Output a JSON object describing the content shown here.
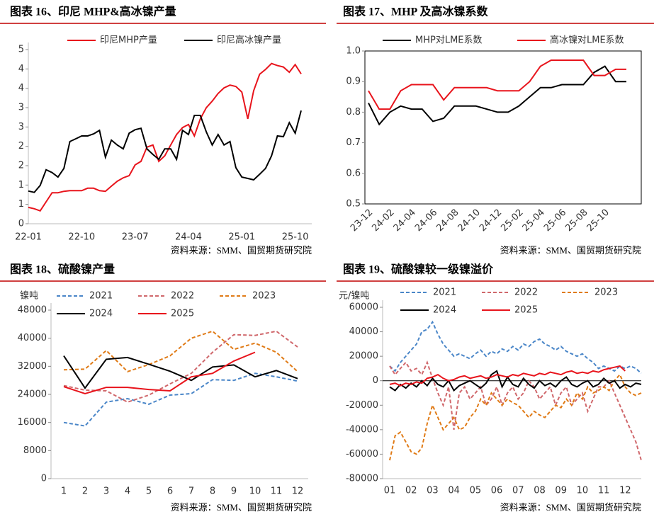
{
  "chart_data": [
    {
      "type": "line",
      "title": "图表 16、印尼 MHP&高冰镍产量",
      "source": "资料来源：SMM、国贸期货研究院",
      "categories": [
        "22-01",
        null,
        null,
        null,
        null,
        null,
        null,
        null,
        null,
        "22-10",
        null,
        null,
        null,
        null,
        null,
        null,
        null,
        null,
        "23-07",
        null,
        null,
        null,
        null,
        null,
        null,
        null,
        null,
        "24-04",
        null,
        null,
        null,
        null,
        null,
        null,
        null,
        null,
        "25-01",
        null,
        null,
        null,
        null,
        null,
        null,
        null,
        null,
        "25-10",
        null
      ],
      "ylim": [
        0,
        5
      ],
      "yticks": [
        0,
        {
          "value": 0.556,
          "label": "1"
        },
        {
          "value": 1.111,
          "label": "1"
        },
        {
          "value": 1.667,
          "label": "2"
        },
        {
          "value": 2.222,
          "label": "2"
        },
        {
          "value": 2.778,
          "label": "3"
        },
        {
          "value": 3.333,
          "label": "3"
        },
        {
          "value": 3.889,
          "label": "4"
        },
        {
          "value": 4.444,
          "label": "4"
        },
        5
      ],
      "series": [
        {
          "name": "印尼MHP产量",
          "color": "#e8141c",
          "values": [
            0.47,
            0.43,
            0.37,
            0.63,
            0.89,
            0.89,
            0.93,
            0.95,
            0.95,
            0.95,
            1.02,
            1.02,
            0.95,
            0.93,
            1.08,
            1.22,
            1.32,
            1.38,
            1.69,
            1.79,
            2.2,
            2.26,
            1.79,
            1.95,
            2.26,
            2.56,
            2.76,
            2.85,
            2.52,
            3.01,
            3.33,
            3.52,
            3.74,
            3.9,
            3.98,
            3.94,
            3.78,
            3.01,
            3.82,
            4.29,
            4.43,
            4.6,
            4.54,
            4.5,
            4.35,
            4.57,
            4.3
          ]
        },
        {
          "name": "印尼高冰镍产量",
          "color": "#000000",
          "values": [
            0.94,
            0.9,
            1.1,
            1.55,
            1.47,
            1.34,
            1.59,
            2.36,
            2.44,
            2.52,
            2.52,
            2.58,
            2.68,
            1.91,
            2.4,
            2.26,
            2.15,
            2.6,
            2.7,
            2.74,
            2.15,
            1.99,
            1.85,
            2.15,
            2.15,
            1.85,
            2.68,
            2.56,
            3.11,
            3.11,
            2.64,
            2.26,
            2.56,
            2.26,
            2.36,
            1.61,
            1.34,
            1.3,
            1.26,
            1.42,
            1.59,
            1.95,
            2.52,
            2.5,
            2.9,
            2.6,
            3.25
          ]
        }
      ]
    },
    {
      "type": "line",
      "title": "图表 17、MHP 及高冰镍系数",
      "source": "资料来源：SMM、国贸期货研究院",
      "categories": [
        "23-12",
        null,
        "24-02",
        null,
        "24-04",
        null,
        "24-06",
        null,
        "24-08",
        null,
        "24-10",
        null,
        "24-12",
        null,
        "25-02",
        null,
        "25-04",
        null,
        "25-06",
        null,
        "25-08",
        null,
        "25-10",
        null,
        null
      ],
      "ylim": [
        0.5,
        1
      ],
      "yticks": [
        0.5,
        0.6,
        0.7,
        0.8,
        0.9,
        {
          "value": 1,
          "label": "1.0"
        }
      ],
      "series": [
        {
          "name": "MHP对LME系数",
          "color": "#000000",
          "values": [
            0.83,
            0.76,
            0.8,
            0.82,
            0.81,
            0.81,
            0.77,
            0.78,
            0.82,
            0.82,
            0.82,
            0.81,
            0.8,
            0.8,
            0.82,
            0.85,
            0.88,
            0.88,
            0.89,
            0.89,
            0.89,
            0.93,
            0.95,
            0.9,
            0.9
          ]
        },
        {
          "name": "高冰镍对LME系数",
          "color": "#e8141c",
          "values": [
            0.87,
            0.81,
            0.81,
            0.87,
            0.89,
            0.89,
            0.89,
            0.84,
            0.88,
            0.88,
            0.88,
            0.88,
            0.87,
            0.87,
            0.87,
            0.9,
            0.95,
            0.97,
            0.97,
            0.97,
            0.97,
            0.92,
            0.92,
            0.94,
            0.94
          ]
        }
      ]
    },
    {
      "type": "line",
      "title": "图表 18、硫酸镍产量",
      "source": "资料来源：SMM、国贸期货研究院",
      "y_label": "镍吨",
      "categories": [
        "1",
        "2",
        "3",
        "4",
        "5",
        "6",
        "7",
        "8",
        "9",
        "10",
        "11",
        "12"
      ],
      "ylim": [
        0,
        48000
      ],
      "yticks": [
        0,
        8000,
        16000,
        24000,
        32000,
        40000,
        48000
      ],
      "series": [
        {
          "name": "2021",
          "color": "#4a86c8",
          "dashed": true,
          "values": [
            16000,
            15000,
            21800,
            22800,
            21200,
            23800,
            24200,
            28200,
            28000,
            30000,
            29000,
            27800
          ]
        },
        {
          "name": "2022",
          "color": "#d0686c",
          "dashed": true,
          "values": [
            26500,
            25200,
            25000,
            21800,
            23800,
            27000,
            30000,
            36000,
            41000,
            40800,
            42000,
            37500
          ]
        },
        {
          "name": "2023",
          "color": "#e07b17",
          "dashed": true,
          "values": [
            31000,
            31200,
            36500,
            30500,
            32500,
            35000,
            40000,
            42000,
            36800,
            38600,
            36000,
            30500
          ]
        },
        {
          "name": "2024",
          "color": "#000000",
          "values": [
            35000,
            25800,
            34000,
            34500,
            32600,
            30600,
            28000,
            31800,
            32400,
            29000,
            30800,
            28500
          ]
        },
        {
          "name": "2025",
          "color": "#e8141c",
          "values": [
            26200,
            24200,
            26000,
            26000,
            25400,
            25000,
            29000,
            30000,
            33500,
            36000,
            null,
            null
          ]
        }
      ]
    },
    {
      "type": "line",
      "title": "图表 19、硫酸镍较一级镍溢价",
      "source": "资料来源：SMM、国贸期货研究院",
      "y_label": "元/镍吨",
      "categories": [
        "01",
        null,
        null,
        null,
        "02",
        null,
        null,
        null,
        "03",
        null,
        null,
        null,
        "04",
        null,
        null,
        null,
        "05",
        null,
        null,
        null,
        "06",
        null,
        null,
        null,
        "07",
        null,
        null,
        null,
        "08",
        null,
        null,
        null,
        "09",
        null,
        null,
        null,
        "10",
        null,
        null,
        null,
        "11",
        null,
        null,
        null,
        "12",
        null,
        null,
        null
      ],
      "ylim": [
        -80000,
        60000
      ],
      "yticks": [
        -80000,
        -60000,
        -40000,
        -20000,
        0,
        20000,
        40000,
        60000
      ],
      "series": [
        {
          "name": "2021",
          "color": "#4a86c8",
          "dashed": true,
          "values": [
            12000,
            8000,
            15000,
            20000,
            25000,
            30000,
            40000,
            42000,
            48000,
            38000,
            30000,
            25000,
            20000,
            22000,
            20000,
            18000,
            22000,
            25000,
            20000,
            24000,
            22000,
            26000,
            24000,
            28000,
            25000,
            30000,
            28000,
            32000,
            34000,
            30000,
            28000,
            25000,
            28000,
            24000,
            22000,
            20000,
            22000,
            18000,
            15000,
            10000,
            12000,
            10000,
            8000,
            12000,
            10000,
            12000,
            10000,
            6000
          ]
        },
        {
          "name": "2022",
          "color": "#d0686c",
          "dashed": true,
          "values": [
            12000,
            5000,
            10000,
            15000,
            8000,
            10000,
            5000,
            15000,
            2000,
            -10000,
            -20000,
            -5000,
            -40000,
            -10000,
            -5000,
            -15000,
            -10000,
            -5000,
            -20000,
            -15000,
            -5000,
            -20000,
            -10000,
            -5000,
            -15000,
            -10000,
            0,
            -5000,
            -15000,
            -10000,
            -5000,
            -20000,
            -10000,
            -5000,
            -20000,
            -15000,
            -10000,
            -25000,
            -15000,
            -5000,
            -5000,
            0,
            -10000,
            -20000,
            -30000,
            -40000,
            -50000,
            -65000
          ]
        },
        {
          "name": "2023",
          "color": "#e07b17",
          "dashed": true,
          "values": [
            -65000,
            -45000,
            -42000,
            -50000,
            -58000,
            -60000,
            -55000,
            -35000,
            -20000,
            -30000,
            -40000,
            -35000,
            -30000,
            -40000,
            -38000,
            -30000,
            -25000,
            -15000,
            -20000,
            -10000,
            -15000,
            -20000,
            -15000,
            -18000,
            -20000,
            -25000,
            -30000,
            -25000,
            -28000,
            -30000,
            -25000,
            -20000,
            -22000,
            -15000,
            -20000,
            -10000,
            -15000,
            -5000,
            -10000,
            -8000,
            -5000,
            -8000,
            0,
            5000,
            -5000,
            -10000,
            -12000,
            -10000
          ]
        },
        {
          "name": "2024",
          "color": "#000000",
          "values": [
            -5000,
            -8000,
            -3000,
            -6000,
            -2000,
            -5000,
            0,
            -4000,
            2000,
            -3000,
            -5000,
            0,
            -8000,
            -4000,
            -2000,
            0,
            -3000,
            -6000,
            -2000,
            5000,
            8000,
            -5000,
            3000,
            -3000,
            -5000,
            2000,
            -3000,
            -6000,
            0,
            -4000,
            -2000,
            -5000,
            0,
            3000,
            -3000,
            -5000,
            -2000,
            0,
            -5000,
            -3000,
            2000,
            -2000,
            0,
            -6000,
            -3000,
            -5000,
            -2000,
            -3000
          ]
        },
        {
          "name": "2025",
          "color": "#e8141c",
          "values": [
            -3000,
            -2000,
            -4000,
            -2000,
            -3000,
            -1000,
            -2000,
            2000,
            3000,
            5000,
            2000,
            0,
            1000,
            3000,
            4000,
            2000,
            3000,
            4000,
            2000,
            3000,
            5000,
            4000,
            3000,
            5000,
            4000,
            6000,
            5000,
            4000,
            6000,
            5000,
            7000,
            6000,
            5000,
            7000,
            8000,
            6000,
            7000,
            6000,
            8000,
            7000,
            9000,
            10000,
            11000,
            12000,
            8000,
            null,
            null,
            null
          ]
        }
      ]
    }
  ]
}
